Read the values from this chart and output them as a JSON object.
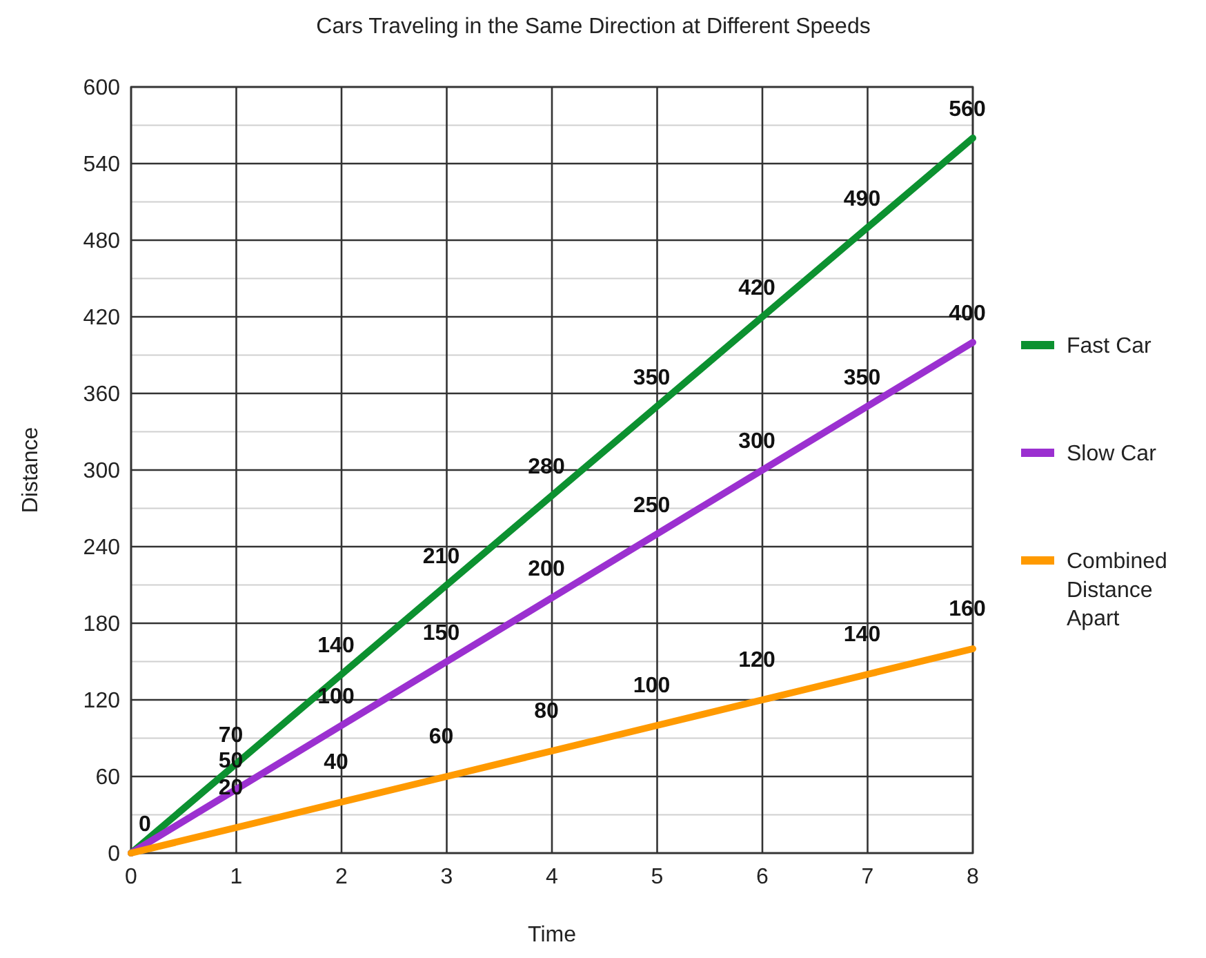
{
  "chart_data": {
    "type": "line",
    "title": "Cars Traveling in the Same Direction at Different Speeds",
    "xlabel": "Time",
    "ylabel": "Distance",
    "x": [
      0,
      1,
      2,
      3,
      4,
      5,
      6,
      7,
      8
    ],
    "series": [
      {
        "name": "Fast Car",
        "color": "#0c9130",
        "values": [
          0,
          70,
          140,
          210,
          280,
          350,
          420,
          490,
          560
        ],
        "value_labels": [
          "0",
          "70",
          "140",
          "210",
          "280",
          "350",
          "420",
          "490",
          "560"
        ]
      },
      {
        "name": "Slow Car",
        "color": "#9b30d0",
        "values": [
          0,
          50,
          100,
          150,
          200,
          250,
          300,
          350,
          400
        ],
        "value_labels": [
          null,
          "50",
          "100",
          "150",
          "200",
          "250",
          "300",
          "350",
          "400"
        ]
      },
      {
        "name": "Combined Distance Apart",
        "color": "#ff9a00",
        "values": [
          0,
          20,
          40,
          60,
          80,
          100,
          120,
          140,
          160
        ],
        "value_labels": [
          null,
          "20",
          "40",
          "60",
          "80",
          "100",
          "120",
          "140",
          "160"
        ]
      }
    ],
    "xlim": [
      0,
      8
    ],
    "xticks": [
      0,
      1,
      2,
      3,
      4,
      5,
      6,
      7,
      8
    ],
    "ylim": [
      0,
      600
    ],
    "yticks": [
      0,
      {
        "value": 30,
        "label": null
      },
      60,
      {
        "value": 90,
        "label": null
      },
      120,
      {
        "value": 150,
        "label": null
      },
      180,
      {
        "value": 210,
        "label": null
      },
      240,
      {
        "value": 270,
        "label": null
      },
      300,
      {
        "value": 330,
        "label": null
      },
      360,
      {
        "value": 390,
        "label": null
      },
      420,
      {
        "value": 450,
        "label": null
      },
      480,
      {
        "value": 510,
        "label": null
      },
      540,
      {
        "value": 570,
        "label": null
      },
      600
    ],
    "grid": true,
    "legend": "right",
    "marker": "none",
    "line_style": "solid"
  }
}
